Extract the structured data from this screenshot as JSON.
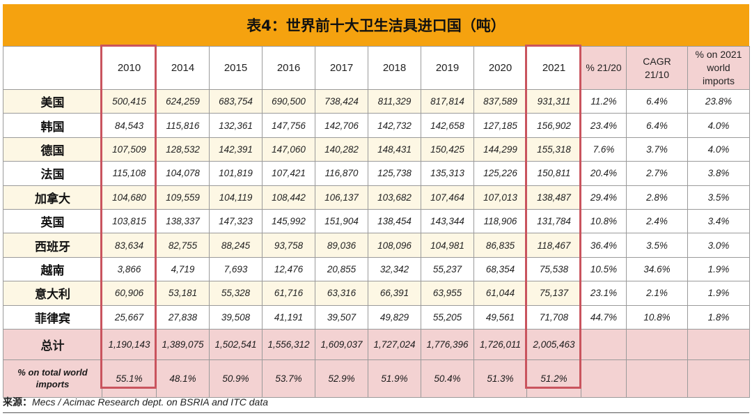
{
  "title": "表4：世界前十大卫生洁具进口国（吨）",
  "header": {
    "years": [
      "2010",
      "2014",
      "2015",
      "2016",
      "2017",
      "2018",
      "2019",
      "2020",
      "2021"
    ],
    "pct": "% 21/20",
    "cagr": [
      "CAGR",
      "21/10"
    ],
    "share": [
      "% on 2021",
      "world",
      "imports"
    ]
  },
  "rows": [
    {
      "country": "美国",
      "values": [
        "500,415",
        "624,259",
        "683,754",
        "690,500",
        "738,424",
        "811,329",
        "817,814",
        "837,589",
        "931,311"
      ],
      "pct": "11.2%",
      "cagr": "6.4%",
      "share": "23.8%"
    },
    {
      "country": "韩国",
      "values": [
        "84,543",
        "115,816",
        "132,361",
        "147,756",
        "142,706",
        "142,732",
        "142,658",
        "127,185",
        "156,902"
      ],
      "pct": "23.4%",
      "cagr": "6.4%",
      "share": "4.0%"
    },
    {
      "country": "德国",
      "values": [
        "107,509",
        "128,532",
        "142,391",
        "147,060",
        "140,282",
        "148,431",
        "150,425",
        "144,299",
        "155,318"
      ],
      "pct": "7.6%",
      "cagr": "3.7%",
      "share": "4.0%"
    },
    {
      "country": "法国",
      "values": [
        "115,108",
        "104,078",
        "101,819",
        "107,421",
        "116,870",
        "125,738",
        "135,313",
        "125,226",
        "150,811"
      ],
      "pct": "20.4%",
      "cagr": "2.7%",
      "share": "3.8%"
    },
    {
      "country": "加拿大",
      "values": [
        "104,680",
        "109,559",
        "104,119",
        "108,442",
        "106,137",
        "103,682",
        "107,464",
        "107,013",
        "138,487"
      ],
      "pct": "29.4%",
      "cagr": "2.8%",
      "share": "3.5%"
    },
    {
      "country": "英国",
      "values": [
        "103,815",
        "138,337",
        "147,323",
        "145,992",
        "151,904",
        "138,454",
        "143,344",
        "118,906",
        "131,784"
      ],
      "pct": "10.8%",
      "cagr": "2.4%",
      "share": "3.4%"
    },
    {
      "country": "西班牙",
      "values": [
        "83,634",
        "82,755",
        "88,245",
        "93,758",
        "89,036",
        "108,096",
        "104,981",
        "86,835",
        "118,467"
      ],
      "pct": "36.4%",
      "cagr": "3.5%",
      "share": "3.0%"
    },
    {
      "country": "越南",
      "values": [
        "3,866",
        "4,719",
        "7,693",
        "12,476",
        "20,855",
        "32,342",
        "55,237",
        "68,354",
        "75,538"
      ],
      "pct": "10.5%",
      "cagr": "34.6%",
      "share": "1.9%"
    },
    {
      "country": "意大利",
      "values": [
        "60,906",
        "53,181",
        "55,328",
        "61,716",
        "63,316",
        "66,391",
        "63,955",
        "61,044",
        "75,137"
      ],
      "pct": "23.1%",
      "cagr": "2.1%",
      "share": "1.9%"
    },
    {
      "country": "菲律宾",
      "values": [
        "25,667",
        "27,838",
        "39,508",
        "41,191",
        "39,507",
        "49,829",
        "55,205",
        "49,561",
        "71,708"
      ],
      "pct": "44.7%",
      "cagr": "10.8%",
      "share": "1.8%"
    }
  ],
  "total": {
    "label": "总计",
    "values": [
      "1,190,143",
      "1,389,075",
      "1,502,541",
      "1,556,312",
      "1,609,037",
      "1,727,024",
      "1,776,396",
      "1,726,011",
      "2,005,463"
    ]
  },
  "share_row": {
    "label": "% on total world imports",
    "values": [
      "55.1%",
      "48.1%",
      "50.9%",
      "53.7%",
      "52.9%",
      "51.9%",
      "50.4%",
      "51.3%",
      "51.2%"
    ]
  },
  "source": {
    "label": "来源：",
    "text": "Mecs / Acimac Research dept. on BSRIA and ITC data"
  },
  "colors": {
    "title_bg": "#f5a20f",
    "highlight": "#c9545e",
    "pink": "#f3d2d2",
    "row_tint": "#fdf7e4"
  }
}
